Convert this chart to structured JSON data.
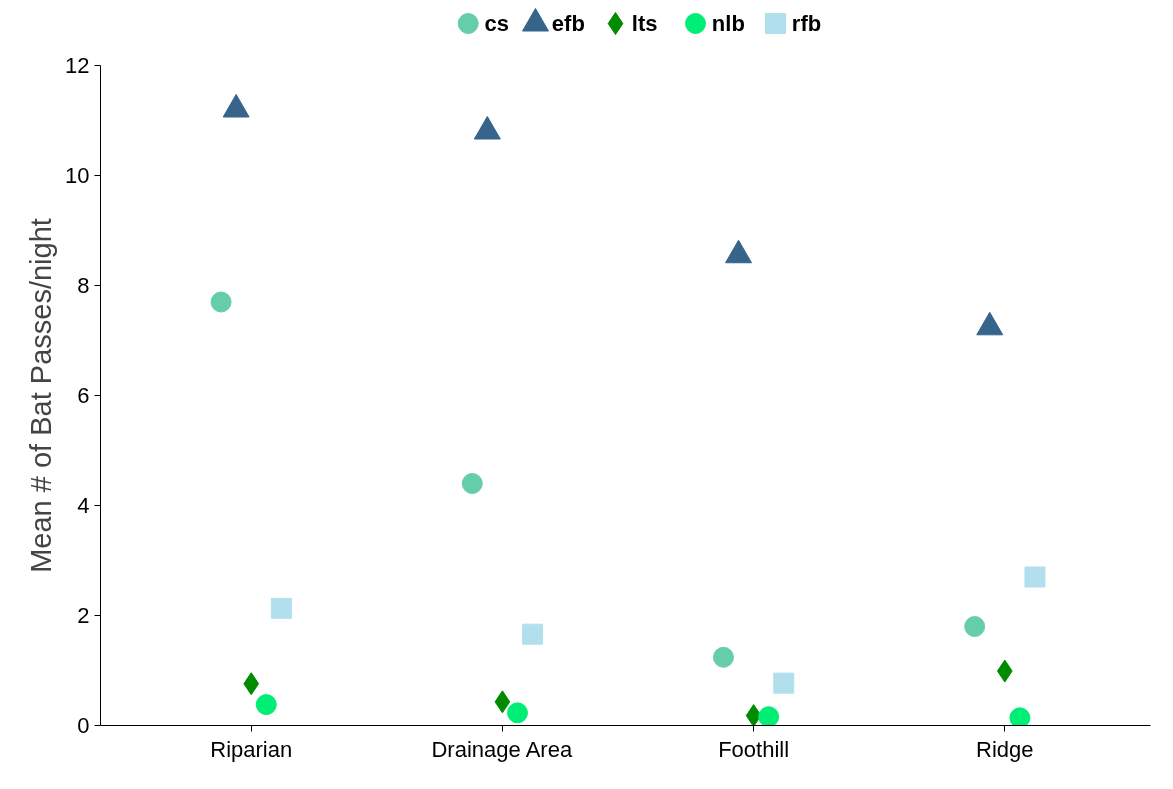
{
  "chart_data": {
    "type": "scatter",
    "ylabel": "Mean # of Bat Passes/night",
    "categories": [
      "Riparian",
      "Drainage Area",
      "Foothill",
      "Ridge"
    ],
    "series": [
      {
        "name": "cs",
        "color": "#66cdaa",
        "marker": "circle",
        "values": [
          7.7,
          4.4,
          1.24,
          1.8
        ]
      },
      {
        "name": "efb",
        "color": "#36648b",
        "marker": "triangle",
        "values": [
          11.2,
          10.8,
          8.55,
          7.24
        ]
      },
      {
        "name": "lts",
        "color": "#008b00",
        "marker": "diamond",
        "values": [
          0.76,
          0.43,
          0.18,
          0.99
        ]
      },
      {
        "name": "nlb",
        "color": "#00ee76",
        "marker": "circle",
        "values": [
          0.38,
          0.23,
          0.16,
          0.14
        ]
      },
      {
        "name": "rfb",
        "color": "#b2dfee",
        "marker": "square",
        "values": [
          2.13,
          1.66,
          0.77,
          2.7
        ]
      }
    ],
    "ylim": [
      0,
      12
    ],
    "yticks": [
      0,
      2,
      4,
      6,
      8,
      10,
      12
    ],
    "grid": false,
    "legend": "top"
  }
}
